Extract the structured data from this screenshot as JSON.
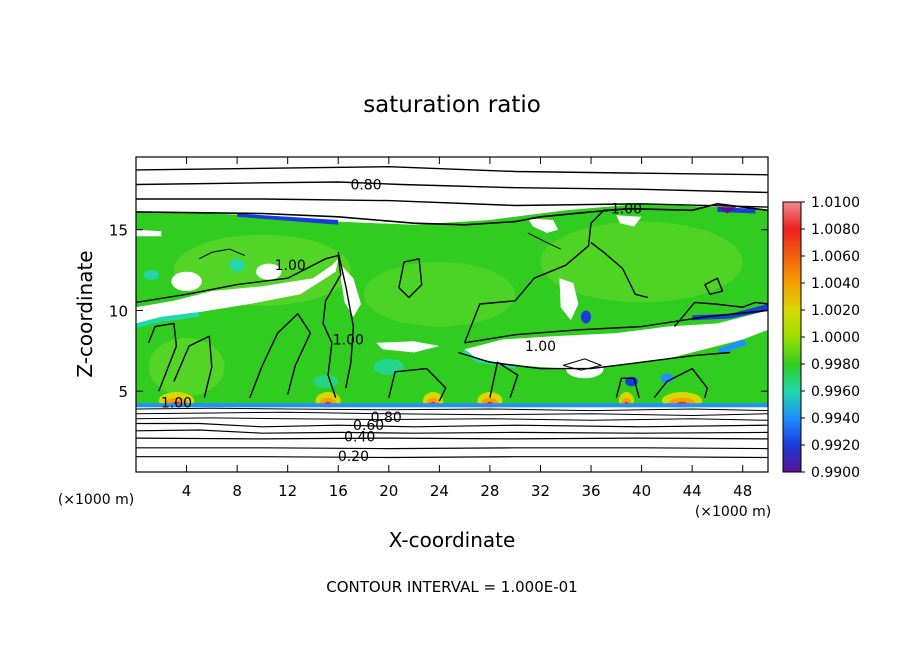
{
  "chart_data": {
    "type": "heatmap",
    "title": "saturation ratio",
    "xlabel": "X-coordinate",
    "ylabel": "Z-coordinate",
    "x_unit": "(×1000 m)",
    "y_unit": "(×1000 m)",
    "xlim": [
      0,
      50
    ],
    "ylim": [
      0,
      19.5
    ],
    "x_ticks": [
      4,
      8,
      12,
      16,
      20,
      24,
      28,
      32,
      36,
      40,
      44,
      48
    ],
    "y_ticks": [
      5,
      10,
      15
    ],
    "footer": "CONTOUR INTERVAL = 1.000E-01",
    "colorbar": {
      "labels": [
        "1.0100",
        "1.0080",
        "1.0060",
        "1.0040",
        "1.0020",
        "1.0000",
        "0.9980",
        "0.9960",
        "0.9940",
        "0.9920",
        "0.9900"
      ],
      "colors": [
        "#f08a8a",
        "#ee2020",
        "#f26010",
        "#f5a000",
        "#d8d800",
        "#9be000",
        "#30cc20",
        "#20d8a8",
        "#1e90ff",
        "#1a3cdc",
        "#5a1090"
      ]
    },
    "contour_labels": [
      {
        "text": "0.80",
        "x": 18.2,
        "z": 17.8
      },
      {
        "text": "1.00",
        "x": 38.8,
        "z": 16.3
      },
      {
        "text": "1.00",
        "x": 12.2,
        "z": 12.8
      },
      {
        "text": "1.00",
        "x": 16.8,
        "z": 8.2
      },
      {
        "text": "1.00",
        "x": 32.0,
        "z": 7.8
      },
      {
        "text": "1.00",
        "x": 3.2,
        "z": 4.3
      },
      {
        "text": "0.80",
        "x": 19.8,
        "z": 3.4
      },
      {
        "text": "0.60",
        "x": 18.4,
        "z": 2.9
      },
      {
        "text": "0.40",
        "x": 17.7,
        "z": 2.2
      },
      {
        "text": "0.20",
        "x": 17.2,
        "z": 1.0
      }
    ]
  }
}
